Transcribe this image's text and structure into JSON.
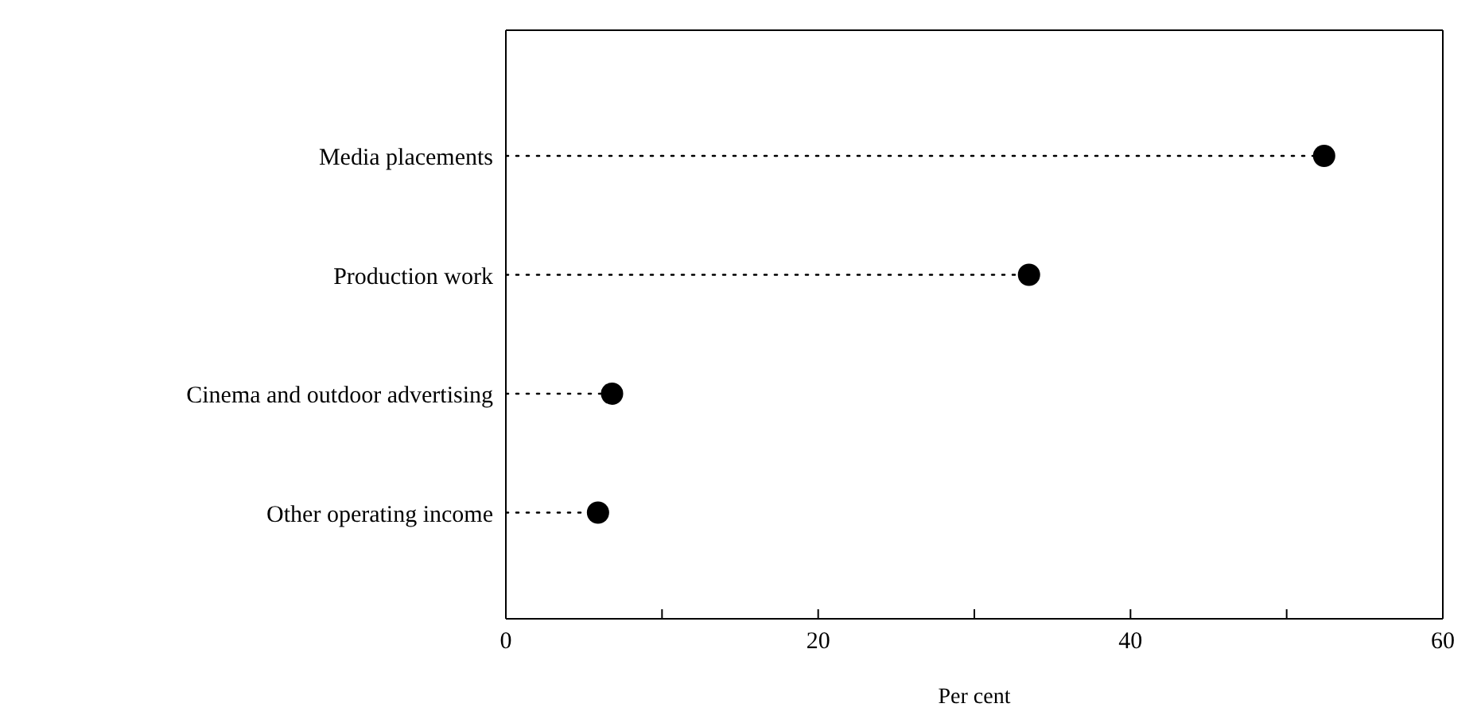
{
  "chart_data": {
    "type": "lollipop",
    "orientation": "horizontal",
    "xlabel": "Per cent",
    "categories": [
      "Media placements",
      "Production work",
      "Cinema and outdoor advertising",
      "Other operating income"
    ],
    "values": [
      52.4,
      33.5,
      6.8,
      5.9
    ],
    "color": "#000000",
    "marker": "circle",
    "line_style": "dotted",
    "xlim": [
      0,
      60
    ],
    "xticks": [
      0,
      {
        "value": 10,
        "label": null
      },
      20,
      {
        "value": 30,
        "label": null
      },
      40,
      {
        "value": 50,
        "label": null
      },
      60
    ],
    "grid": false
  }
}
